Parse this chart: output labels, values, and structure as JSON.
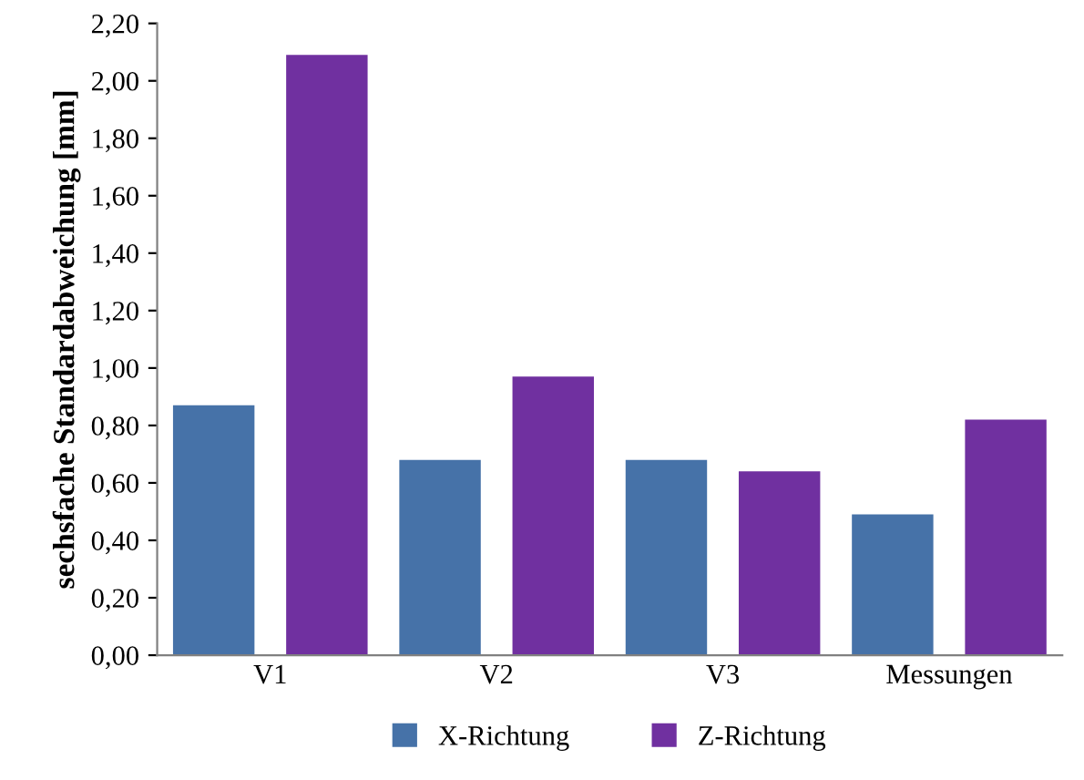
{
  "chart_data": {
    "type": "bar",
    "ylabel": "sechsfache Standardabweichung [mm]",
    "categories": [
      "V1",
      "V2",
      "V3",
      "Messungen"
    ],
    "series": [
      {
        "name": "X-Richtung",
        "color": "#4672a8",
        "values": [
          0.87,
          0.68,
          0.68,
          0.49
        ]
      },
      {
        "name": "Z-Richtung",
        "color": "#7030a0",
        "values": [
          2.09,
          0.97,
          0.64,
          0.82
        ]
      }
    ],
    "ylim": [
      0,
      2.2
    ],
    "yticks": [
      {
        "value": 0,
        "label": "0,00"
      },
      {
        "value": 0.2,
        "label": "0,20"
      },
      {
        "value": 0.4,
        "label": "0,40"
      },
      {
        "value": 0.6,
        "label": "0,60"
      },
      {
        "value": 0.8,
        "label": "0,80"
      },
      {
        "value": 1.0,
        "label": "1,00"
      },
      {
        "value": 1.2,
        "label": "1,20"
      },
      {
        "value": 1.4,
        "label": "1,40"
      },
      {
        "value": 1.6,
        "label": "1,60"
      },
      {
        "value": 1.8,
        "label": "1,80"
      },
      {
        "value": 2.0,
        "label": "2,00"
      },
      {
        "value": 2.2,
        "label": "2,20"
      }
    ],
    "grid": false,
    "legend": "bottom"
  }
}
